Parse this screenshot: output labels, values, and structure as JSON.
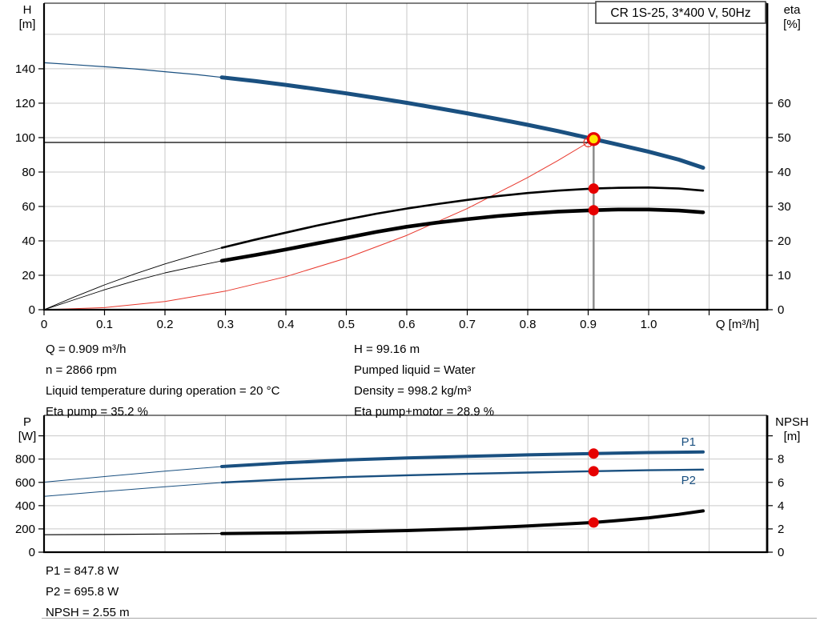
{
  "colors": {
    "curve_blue": "#1a5080",
    "marker_red": "#e60000",
    "duty_yellow": "#ffe600",
    "system_red": "#e8372c",
    "grid": "#c9c9c9",
    "duty_line_gray": "#8c8c8c"
  },
  "info": {
    "left_lines": [
      "Q = 0.909 m³/h",
      "n = 2866 rpm",
      "Liquid temperature during operation = 20 °C",
      "Eta pump = 35.2 %"
    ],
    "right_lines": [
      "H = 99.16 m",
      "Pumped liquid = Water",
      "Density = 998.2 kg/m³",
      "Eta pump+motor = 28.9 %"
    ],
    "power_lines": [
      "P1 = 847.8 W",
      "P2 = 695.8 W",
      "NPSH = 2.55 m"
    ]
  },
  "chart_data": [
    {
      "type": "line",
      "title": "CR 1S-25, 3*400 V, 50Hz",
      "x_axis": {
        "label": "Q [m³/h]",
        "range": [
          0,
          1.196
        ],
        "grid": [
          0.1,
          0.2,
          0.3,
          0.4,
          0.5,
          0.6,
          0.7,
          0.8,
          0.9,
          1.0,
          1.1
        ],
        "ticks": [
          {
            "v": 0,
            "t": "0"
          },
          {
            "v": 0.1,
            "t": "0.1"
          },
          {
            "v": 0.2,
            "t": "0.2"
          },
          {
            "v": 0.3,
            "t": "0.3"
          },
          {
            "v": 0.4,
            "t": "0.4"
          },
          {
            "v": 0.5,
            "t": "0.5"
          },
          {
            "v": 0.6,
            "t": "0.6"
          },
          {
            "v": 0.7,
            "t": "0.7"
          },
          {
            "v": 0.8,
            "t": "0.8"
          },
          {
            "v": 0.9,
            "t": "0.9"
          },
          {
            "v": 1.0,
            "t": "1.0"
          },
          {
            "v": 1.1,
            "t": ""
          }
        ]
      },
      "left_axis": {
        "label": [
          "H",
          "[m]"
        ],
        "range": [
          0,
          178.1
        ],
        "grid": [
          20,
          40,
          60,
          80,
          100,
          120,
          140,
          160
        ],
        "ticks": [
          {
            "v": 0,
            "t": "0"
          },
          {
            "v": 20,
            "t": "20"
          },
          {
            "v": 40,
            "t": "40"
          },
          {
            "v": 60,
            "t": "60"
          },
          {
            "v": 80,
            "t": "80"
          },
          {
            "v": 100,
            "t": "100"
          },
          {
            "v": 120,
            "t": "120"
          },
          {
            "v": 140,
            "t": "140"
          }
        ]
      },
      "right_axis": {
        "label": [
          "eta",
          "[%]"
        ],
        "range": [
          0,
          89.05
        ],
        "ticks": [
          {
            "v": 0,
            "t": "0"
          },
          {
            "v": 10,
            "t": "10"
          },
          {
            "v": 20,
            "t": "20"
          },
          {
            "v": 30,
            "t": "30"
          },
          {
            "v": 40,
            "t": "40"
          },
          {
            "v": 50,
            "t": "50"
          },
          {
            "v": 60,
            "t": "60"
          }
        ]
      },
      "series": [
        {
          "name": "system-curve",
          "axis": "left",
          "color": "#e8372c",
          "width": 1,
          "points": [
            [
              0,
              0
            ],
            [
              0.1,
              1.2
            ],
            [
              0.2,
              4.8
            ],
            [
              0.3,
              10.8
            ],
            [
              0.4,
              19.2
            ],
            [
              0.5,
              30.0
            ],
            [
              0.6,
              43.2
            ],
            [
              0.7,
              58.8
            ],
            [
              0.8,
              76.8
            ],
            [
              0.85,
              86.7
            ],
            [
              0.9,
              97.2
            ],
            [
              0.909,
              99.16
            ]
          ]
        },
        {
          "name": "qh-curve",
          "axis": "left",
          "color": "#1a5080",
          "width": 5,
          "thin_width": 1.2,
          "split": 0.294,
          "points": [
            [
              0,
              143.5
            ],
            [
              0.05,
              142.4
            ],
            [
              0.1,
              141.2
            ],
            [
              0.15,
              139.9
            ],
            [
              0.2,
              138.3
            ],
            [
              0.25,
              136.7
            ],
            [
              0.294,
              135.0
            ],
            [
              0.35,
              132.8
            ],
            [
              0.4,
              130.6
            ],
            [
              0.45,
              128.2
            ],
            [
              0.5,
              125.7
            ],
            [
              0.55,
              123.0
            ],
            [
              0.6,
              120.2
            ],
            [
              0.65,
              117.2
            ],
            [
              0.7,
              114.1
            ],
            [
              0.75,
              110.8
            ],
            [
              0.8,
              107.4
            ],
            [
              0.85,
              103.8
            ],
            [
              0.909,
              99.16
            ],
            [
              0.95,
              95.9
            ],
            [
              1.0,
              91.8
            ],
            [
              1.05,
              87.2
            ],
            [
              1.09,
              82.5
            ]
          ]
        },
        {
          "name": "eta-pump-curve",
          "axis": "right",
          "color": "#000000",
          "width": 2.6,
          "thin_width": 0.9,
          "split": 0.294,
          "points": [
            [
              0,
              0
            ],
            [
              0.05,
              3.7
            ],
            [
              0.1,
              7.2
            ],
            [
              0.15,
              10.4
            ],
            [
              0.2,
              13.3
            ],
            [
              0.25,
              15.9
            ],
            [
              0.294,
              18.0
            ],
            [
              0.35,
              20.4
            ],
            [
              0.4,
              22.4
            ],
            [
              0.45,
              24.4
            ],
            [
              0.5,
              26.2
            ],
            [
              0.55,
              27.9
            ],
            [
              0.6,
              29.4
            ],
            [
              0.65,
              30.7
            ],
            [
              0.7,
              31.9
            ],
            [
              0.75,
              33.0
            ],
            [
              0.8,
              33.9
            ],
            [
              0.85,
              34.6
            ],
            [
              0.909,
              35.2
            ],
            [
              0.95,
              35.4
            ],
            [
              1.0,
              35.5
            ],
            [
              1.05,
              35.2
            ],
            [
              1.09,
              34.6
            ]
          ]
        },
        {
          "name": "eta-pump-motor-curve",
          "axis": "right",
          "color": "#000000",
          "width": 4.6,
          "thin_width": 0.9,
          "split": 0.294,
          "points": [
            [
              0,
              0
            ],
            [
              0.05,
              2.9
            ],
            [
              0.1,
              5.8
            ],
            [
              0.15,
              8.4
            ],
            [
              0.2,
              10.7
            ],
            [
              0.25,
              12.6
            ],
            [
              0.294,
              14.2
            ],
            [
              0.35,
              15.9
            ],
            [
              0.4,
              17.5
            ],
            [
              0.45,
              19.2
            ],
            [
              0.5,
              20.9
            ],
            [
              0.55,
              22.6
            ],
            [
              0.6,
              24.1
            ],
            [
              0.65,
              25.3
            ],
            [
              0.7,
              26.3
            ],
            [
              0.75,
              27.2
            ],
            [
              0.8,
              27.9
            ],
            [
              0.85,
              28.5
            ],
            [
              0.909,
              28.9
            ],
            [
              0.95,
              29.1
            ],
            [
              1.0,
              29.1
            ],
            [
              1.05,
              28.8
            ],
            [
              1.09,
              28.3
            ]
          ]
        }
      ],
      "duty_lines": {
        "h_value": 97.2,
        "h_to_q": 0.9,
        "v_q": 0.909,
        "v_from": 99.16
      },
      "markers": [
        {
          "name": "requested-duty-point",
          "shape": "open",
          "axis": "left",
          "q": 0.9,
          "v": 97.2
        },
        {
          "name": "duty-point",
          "shape": "duty",
          "axis": "left",
          "q": 0.909,
          "v": 99.16
        },
        {
          "name": "eta-pump-point",
          "shape": "dot",
          "axis": "right",
          "q": 0.909,
          "v": 35.2
        },
        {
          "name": "eta-pump-motor-point",
          "shape": "dot",
          "axis": "right",
          "q": 0.909,
          "v": 28.9
        }
      ],
      "curve_labels": []
    },
    {
      "type": "line",
      "title": "",
      "x_axis": {
        "label": "",
        "range": [
          0,
          1.196
        ],
        "grid": [
          0.1,
          0.2,
          0.3,
          0.4,
          0.5,
          0.6,
          0.7,
          0.8,
          0.9,
          1.0,
          1.1
        ],
        "ticks": []
      },
      "left_axis": {
        "label": [
          "P",
          "[W]"
        ],
        "range": [
          0,
          1176
        ],
        "grid": [
          200,
          400,
          600,
          800,
          1000
        ],
        "ticks": [
          {
            "v": 0,
            "t": "0"
          },
          {
            "v": 200,
            "t": "200"
          },
          {
            "v": 400,
            "t": "400"
          },
          {
            "v": 600,
            "t": "600"
          },
          {
            "v": 800,
            "t": "800"
          },
          {
            "v": 1000,
            "t": ""
          }
        ]
      },
      "right_axis": {
        "label": [
          "NPSH",
          "[m]"
        ],
        "range": [
          0,
          11.76
        ],
        "ticks": [
          {
            "v": 0,
            "t": "0"
          },
          {
            "v": 2,
            "t": "2"
          },
          {
            "v": 4,
            "t": "4"
          },
          {
            "v": 6,
            "t": "6"
          },
          {
            "v": 8,
            "t": "8"
          },
          {
            "v": 10,
            "t": ""
          }
        ]
      },
      "series": [
        {
          "name": "p1-curve",
          "axis": "left",
          "color": "#1a5080",
          "width": 4,
          "thin_width": 1,
          "split": 0.294,
          "points": [
            [
              0,
              602
            ],
            [
              0.1,
              650
            ],
            [
              0.2,
              697
            ],
            [
              0.294,
              736
            ],
            [
              0.4,
              768
            ],
            [
              0.5,
              792
            ],
            [
              0.6,
              810
            ],
            [
              0.7,
              824
            ],
            [
              0.8,
              836
            ],
            [
              0.909,
              847.8
            ],
            [
              1.0,
              856
            ],
            [
              1.05,
              859
            ],
            [
              1.09,
              862
            ]
          ]
        },
        {
          "name": "p2-curve",
          "axis": "left",
          "color": "#1a5080",
          "width": 2.4,
          "thin_width": 1,
          "split": 0.294,
          "points": [
            [
              0,
              480
            ],
            [
              0.1,
              522
            ],
            [
              0.2,
              562
            ],
            [
              0.294,
              598
            ],
            [
              0.4,
              626
            ],
            [
              0.5,
              646
            ],
            [
              0.6,
              661
            ],
            [
              0.7,
              673
            ],
            [
              0.8,
              684
            ],
            [
              0.909,
              695.8
            ],
            [
              1.0,
              704
            ],
            [
              1.05,
              707
            ],
            [
              1.09,
              710
            ]
          ]
        },
        {
          "name": "npsh-curve",
          "axis": "right",
          "color": "#000000",
          "width": 4,
          "thin_width": 1.2,
          "split": 0.294,
          "points": [
            [
              0,
              1.5
            ],
            [
              0.1,
              1.52
            ],
            [
              0.2,
              1.56
            ],
            [
              0.294,
              1.6
            ],
            [
              0.4,
              1.66
            ],
            [
              0.5,
              1.75
            ],
            [
              0.6,
              1.86
            ],
            [
              0.7,
              2.02
            ],
            [
              0.8,
              2.25
            ],
            [
              0.909,
              2.55
            ],
            [
              0.95,
              2.72
            ],
            [
              1.0,
              2.95
            ],
            [
              1.05,
              3.25
            ],
            [
              1.09,
              3.55
            ]
          ]
        }
      ],
      "duty_lines": null,
      "markers": [
        {
          "name": "p1-point",
          "shape": "dot",
          "axis": "left",
          "q": 0.909,
          "v": 847.8
        },
        {
          "name": "p2-point",
          "shape": "dot",
          "axis": "left",
          "q": 0.909,
          "v": 695.8
        },
        {
          "name": "npsh-point",
          "shape": "dot",
          "axis": "right",
          "q": 0.909,
          "v": 2.55
        }
      ],
      "curve_labels": [
        {
          "text": "P1",
          "axis": "left",
          "q": 1.066,
          "v": 915
        },
        {
          "text": "P2",
          "axis": "left",
          "q": 1.066,
          "v": 585
        }
      ]
    }
  ]
}
